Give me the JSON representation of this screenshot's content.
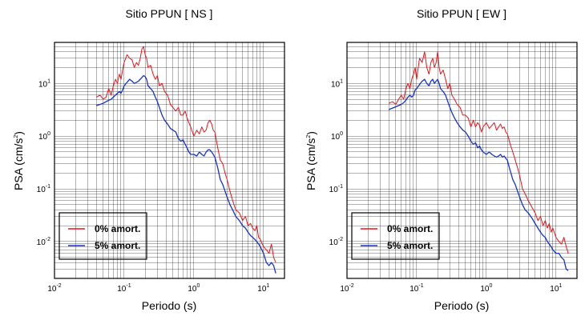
{
  "chart_data": [
    {
      "type": "line",
      "title": "Sitio PPUN [ NS ]",
      "xlabel": "Periodo (s)",
      "ylabel": "PSA (cm/s2)",
      "xscale": "log",
      "yscale": "log",
      "xlim": [
        0.01,
        20
      ],
      "ylim": [
        0.002,
        60
      ],
      "grid": true,
      "xticks": [
        {
          "value": 0.01,
          "base": "10",
          "exp": "-2"
        },
        {
          "value": 0.1,
          "base": "10",
          "exp": "-1"
        },
        {
          "value": 1,
          "base": "10",
          "exp": "0"
        },
        {
          "value": 10,
          "base": "10",
          "exp": "1"
        }
      ],
      "yticks": [
        {
          "value": 0.01,
          "base": "10",
          "exp": "-2"
        },
        {
          "value": 0.1,
          "base": "10",
          "exp": "-1"
        },
        {
          "value": 1,
          "base": "10",
          "exp": "0"
        },
        {
          "value": 10,
          "base": "10",
          "exp": "1"
        }
      ],
      "legend": {
        "position": "bottom-left"
      },
      "series": [
        {
          "name": "0% amort.",
          "color": "#e8141b",
          "x": [
            0.04,
            0.045,
            0.05,
            0.055,
            0.06,
            0.065,
            0.07,
            0.075,
            0.08,
            0.085,
            0.09,
            0.095,
            0.1,
            0.11,
            0.12,
            0.13,
            0.14,
            0.15,
            0.16,
            0.17,
            0.18,
            0.19,
            0.2,
            0.21,
            0.22,
            0.24,
            0.26,
            0.28,
            0.3,
            0.32,
            0.35,
            0.38,
            0.42,
            0.46,
            0.5,
            0.55,
            0.6,
            0.65,
            0.7,
            0.75,
            0.8,
            0.85,
            0.9,
            1.0,
            1.1,
            1.2,
            1.3,
            1.4,
            1.5,
            1.6,
            1.7,
            1.8,
            1.9,
            2.0,
            2.2,
            2.4,
            2.6,
            2.8,
            3.0,
            3.3,
            3.6,
            4.0,
            4.5,
            5.0,
            5.5,
            6.0,
            6.5,
            7.0,
            7.5,
            8.0,
            8.5,
            9.0,
            10,
            11,
            12,
            13,
            14,
            15
          ],
          "y": [
            5.5,
            6,
            5,
            5.5,
            8,
            6,
            9,
            12,
            10,
            15,
            12,
            18,
            25,
            35,
            30,
            28,
            20,
            25,
            22,
            30,
            45,
            50,
            35,
            30,
            20,
            22,
            15,
            12,
            14,
            9,
            10,
            7,
            6,
            4,
            3.5,
            3,
            3.5,
            2.5,
            2.5,
            3,
            2.2,
            1.8,
            1.5,
            1.0,
            1.3,
            1.1,
            1.5,
            1.2,
            1.3,
            1.8,
            2.0,
            1.7,
            1.3,
            1.2,
            0.6,
            0.35,
            0.3,
            0.2,
            0.15,
            0.09,
            0.06,
            0.04,
            0.035,
            0.025,
            0.03,
            0.02,
            0.022,
            0.018,
            0.016,
            0.02,
            0.012,
            0.011,
            0.008,
            0.007,
            0.006,
            0.009,
            0.005,
            0.004
          ]
        },
        {
          "name": "5% amort.",
          "color": "#1432d2",
          "x": [
            0.04,
            0.045,
            0.05,
            0.055,
            0.06,
            0.065,
            0.07,
            0.075,
            0.08,
            0.085,
            0.09,
            0.095,
            0.1,
            0.11,
            0.12,
            0.13,
            0.14,
            0.15,
            0.16,
            0.17,
            0.18,
            0.19,
            0.2,
            0.21,
            0.22,
            0.24,
            0.26,
            0.28,
            0.3,
            0.32,
            0.35,
            0.38,
            0.42,
            0.46,
            0.5,
            0.55,
            0.6,
            0.65,
            0.7,
            0.75,
            0.8,
            0.85,
            0.9,
            1.0,
            1.1,
            1.2,
            1.3,
            1.4,
            1.5,
            1.6,
            1.7,
            1.8,
            1.9,
            2.0,
            2.2,
            2.4,
            2.6,
            2.8,
            3.0,
            3.3,
            3.6,
            4.0,
            4.5,
            5.0,
            5.5,
            6.0,
            6.5,
            7.0,
            7.5,
            8.0,
            8.5,
            9.0,
            10,
            11,
            12,
            13,
            14,
            15
          ],
          "y": [
            3.8,
            4,
            4.2,
            4.5,
            4.8,
            5,
            5.5,
            6,
            6.5,
            7,
            6.5,
            7.5,
            9,
            10.5,
            12,
            11,
            10,
            10.5,
            11,
            12,
            13,
            14,
            13.5,
            12,
            9,
            8,
            7,
            5.5,
            4.5,
            3.5,
            2.5,
            2.0,
            1.7,
            1.4,
            1.3,
            1.2,
            0.9,
            0.8,
            0.85,
            0.7,
            0.6,
            0.5,
            0.45,
            0.45,
            0.42,
            0.5,
            0.45,
            0.42,
            0.5,
            0.55,
            0.55,
            0.5,
            0.45,
            0.4,
            0.25,
            0.15,
            0.12,
            0.09,
            0.07,
            0.05,
            0.04,
            0.03,
            0.025,
            0.02,
            0.018,
            0.015,
            0.013,
            0.012,
            0.011,
            0.01,
            0.009,
            0.008,
            0.006,
            0.004,
            0.0035,
            0.004,
            0.0035,
            0.0025
          ]
        }
      ]
    },
    {
      "type": "line",
      "title": "Sitio PPUN [ EW ]",
      "xlabel": "Periodo (s)",
      "ylabel": "PSA (cm/s2)",
      "xscale": "log",
      "yscale": "log",
      "xlim": [
        0.01,
        20
      ],
      "ylim": [
        0.002,
        60
      ],
      "grid": true,
      "xticks": [
        {
          "value": 0.01,
          "base": "10",
          "exp": "-2"
        },
        {
          "value": 0.1,
          "base": "10",
          "exp": "-1"
        },
        {
          "value": 1,
          "base": "10",
          "exp": "0"
        },
        {
          "value": 10,
          "base": "10",
          "exp": "1"
        }
      ],
      "yticks": [
        {
          "value": 0.01,
          "base": "10",
          "exp": "-2"
        },
        {
          "value": 0.1,
          "base": "10",
          "exp": "-1"
        },
        {
          "value": 1,
          "base": "10",
          "exp": "0"
        },
        {
          "value": 10,
          "base": "10",
          "exp": "1"
        }
      ],
      "legend": {
        "position": "bottom-left"
      },
      "series": [
        {
          "name": "0% amort.",
          "color": "#e8141b",
          "x": [
            0.04,
            0.045,
            0.05,
            0.055,
            0.06,
            0.065,
            0.07,
            0.075,
            0.08,
            0.085,
            0.09,
            0.095,
            0.1,
            0.11,
            0.12,
            0.13,
            0.14,
            0.15,
            0.16,
            0.17,
            0.18,
            0.19,
            0.2,
            0.21,
            0.22,
            0.24,
            0.26,
            0.28,
            0.3,
            0.32,
            0.35,
            0.38,
            0.42,
            0.46,
            0.5,
            0.55,
            0.6,
            0.65,
            0.7,
            0.75,
            0.8,
            0.85,
            0.9,
            1.0,
            1.1,
            1.2,
            1.3,
            1.4,
            1.5,
            1.6,
            1.7,
            1.8,
            1.9,
            2.0,
            2.2,
            2.4,
            2.6,
            2.8,
            3.0,
            3.3,
            3.6,
            4.0,
            4.5,
            5.0,
            5.5,
            6.0,
            6.5,
            7.0,
            7.5,
            8.0,
            8.5,
            9.0,
            10,
            11,
            12,
            13,
            14,
            15
          ],
          "y": [
            4.2,
            4.5,
            4,
            5,
            6,
            5,
            8,
            10,
            8,
            12,
            15,
            20,
            12,
            30,
            25,
            40,
            20,
            15,
            25,
            30,
            20,
            25,
            40,
            20,
            15,
            18,
            12,
            8,
            10,
            6,
            5,
            4,
            3.5,
            2.5,
            2.5,
            2.2,
            1.5,
            2,
            1.5,
            1.8,
            1.6,
            1.2,
            1.5,
            1.8,
            1.4,
            1.6,
            1.8,
            1.3,
            1.5,
            1.7,
            1.4,
            1.5,
            1.2,
            1.1,
            0.7,
            0.5,
            0.35,
            0.25,
            0.18,
            0.1,
            0.08,
            0.06,
            0.045,
            0.035,
            0.025,
            0.03,
            0.02,
            0.025,
            0.018,
            0.022,
            0.015,
            0.018,
            0.012,
            0.01,
            0.009,
            0.012,
            0.008,
            0.006
          ]
        },
        {
          "name": "5% amort.",
          "color": "#1432d2",
          "x": [
            0.04,
            0.045,
            0.05,
            0.055,
            0.06,
            0.065,
            0.07,
            0.075,
            0.08,
            0.085,
            0.09,
            0.095,
            0.1,
            0.11,
            0.12,
            0.13,
            0.14,
            0.15,
            0.16,
            0.17,
            0.18,
            0.19,
            0.2,
            0.21,
            0.22,
            0.24,
            0.26,
            0.28,
            0.3,
            0.32,
            0.35,
            0.38,
            0.42,
            0.46,
            0.5,
            0.55,
            0.6,
            0.65,
            0.7,
            0.75,
            0.8,
            0.85,
            0.9,
            1.0,
            1.1,
            1.2,
            1.3,
            1.4,
            1.5,
            1.6,
            1.7,
            1.8,
            1.9,
            2.0,
            2.2,
            2.4,
            2.6,
            2.8,
            3.0,
            3.3,
            3.6,
            4.0,
            4.5,
            5.0,
            5.5,
            6.0,
            6.5,
            7.0,
            7.5,
            8.0,
            8.5,
            9.0,
            10,
            11,
            12,
            13,
            14,
            15
          ],
          "y": [
            3.2,
            3.4,
            3.6,
            3.8,
            4,
            4.3,
            4.8,
            5.5,
            6,
            5.5,
            6,
            7.5,
            8,
            9.5,
            11,
            12,
            10,
            9,
            11,
            12,
            10,
            11,
            12,
            10,
            8,
            7,
            6,
            4.5,
            3.5,
            2.8,
            2.2,
            1.8,
            1.5,
            1.3,
            1.2,
            1.0,
            0.8,
            0.7,
            0.75,
            0.6,
            0.65,
            0.55,
            0.5,
            0.45,
            0.5,
            0.45,
            0.42,
            0.4,
            0.42,
            0.45,
            0.4,
            0.42,
            0.38,
            0.35,
            0.22,
            0.15,
            0.12,
            0.09,
            0.07,
            0.05,
            0.04,
            0.035,
            0.028,
            0.022,
            0.018,
            0.015,
            0.013,
            0.012,
            0.01,
            0.009,
            0.008,
            0.007,
            0.006,
            0.006,
            0.005,
            0.0045,
            0.003,
            0.0028
          ]
        }
      ]
    }
  ]
}
